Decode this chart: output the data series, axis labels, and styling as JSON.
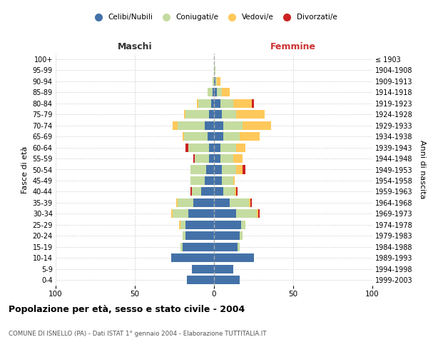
{
  "age_groups": [
    "0-4",
    "5-9",
    "10-14",
    "15-19",
    "20-24",
    "25-29",
    "30-34",
    "35-39",
    "40-44",
    "45-49",
    "50-54",
    "55-59",
    "60-64",
    "65-69",
    "70-74",
    "75-79",
    "80-84",
    "85-89",
    "90-94",
    "95-99",
    "100+"
  ],
  "birth_years": [
    "1999-2003",
    "1994-1998",
    "1989-1993",
    "1984-1988",
    "1979-1983",
    "1974-1978",
    "1969-1973",
    "1964-1968",
    "1959-1963",
    "1954-1958",
    "1949-1953",
    "1944-1948",
    "1939-1943",
    "1934-1938",
    "1929-1933",
    "1924-1928",
    "1919-1923",
    "1914-1918",
    "1909-1913",
    "1904-1908",
    "≤ 1903"
  ],
  "maschi": {
    "celibi": [
      17,
      14,
      27,
      20,
      18,
      18,
      16,
      13,
      8,
      6,
      5,
      3,
      3,
      4,
      6,
      3,
      2,
      1,
      0,
      0,
      0
    ],
    "coniugati": [
      0,
      0,
      0,
      1,
      2,
      3,
      10,
      10,
      6,
      9,
      10,
      9,
      13,
      15,
      17,
      15,
      8,
      3,
      1,
      0,
      0
    ],
    "vedovi": [
      0,
      0,
      0,
      0,
      0,
      1,
      1,
      1,
      0,
      0,
      0,
      0,
      0,
      1,
      3,
      1,
      1,
      0,
      0,
      0,
      0
    ],
    "divorziati": [
      0,
      0,
      0,
      0,
      0,
      0,
      0,
      0,
      1,
      0,
      0,
      1,
      2,
      0,
      0,
      0,
      0,
      0,
      0,
      0,
      0
    ]
  },
  "femmine": {
    "nubili": [
      16,
      12,
      25,
      15,
      16,
      17,
      14,
      10,
      6,
      5,
      5,
      4,
      4,
      6,
      6,
      5,
      4,
      2,
      1,
      0,
      0
    ],
    "coniugate": [
      0,
      0,
      0,
      1,
      2,
      3,
      13,
      12,
      7,
      7,
      9,
      8,
      10,
      10,
      12,
      9,
      8,
      3,
      1,
      1,
      0
    ],
    "vedove": [
      0,
      0,
      0,
      0,
      0,
      0,
      1,
      1,
      1,
      1,
      4,
      6,
      6,
      13,
      18,
      18,
      12,
      5,
      2,
      0,
      0
    ],
    "divorziate": [
      0,
      0,
      0,
      0,
      0,
      0,
      1,
      1,
      1,
      0,
      2,
      0,
      0,
      0,
      0,
      0,
      1,
      0,
      0,
      0,
      0
    ]
  },
  "colors": {
    "celibi_nubili": "#4472a8",
    "coniugati": "#c5dca0",
    "vedovi": "#ffc85a",
    "divorziati": "#cc2222"
  },
  "xlim": 100,
  "title": "Popolazione per età, sesso e stato civile - 2004",
  "subtitle": "COMUNE DI ISNELLO (PA) - Dati ISTAT 1° gennaio 2004 - Elaborazione TUTTITALIA.IT",
  "ylabel_left": "Fasce di età",
  "ylabel_right": "Anni di nascita",
  "xlabel_left": "Maschi",
  "xlabel_right": "Femmine"
}
